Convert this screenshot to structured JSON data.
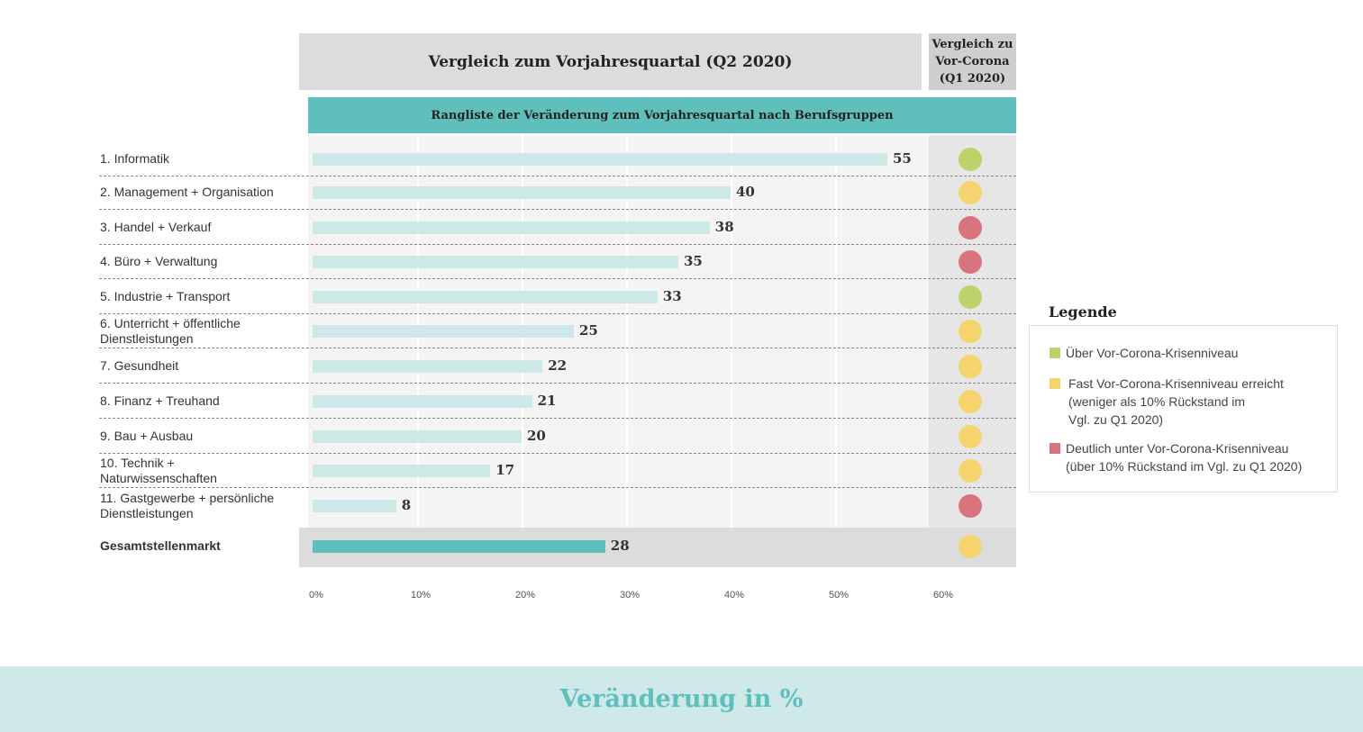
{
  "header": {
    "main": "Vergleich zum Vorjahresquartal (Q2 2020)",
    "side_lines": [
      "Vergleich zu",
      "Vor-Corona",
      "(Q1 2020)"
    ]
  },
  "band": "Rangliste der Veränderung zum Vorjahresquartal nach Berufsgruppen",
  "chart_data": {
    "type": "bar",
    "orientation": "horizontal",
    "title": "Vergleich zum Vorjahresquartal (Q2 2020)",
    "subtitle": "Rangliste der Veränderung zum Vorjahresquartal nach Berufsgruppen",
    "xlabel": "Veränderung in %",
    "xlim": [
      0,
      60
    ],
    "ticks": [
      "0%",
      "10%",
      "20%",
      "30%",
      "40%",
      "50%",
      "60%"
    ],
    "categories": [
      "1. Informatik",
      "2. Management + Organisation",
      "3. Handel + Verkauf",
      "4. Büro + Verwaltung",
      "5. Industrie + Transport",
      "6. Unterricht + öffentliche Dienstleistungen",
      "7. Gesundheit",
      "8. Finanz + Treuhand",
      "9. Bau + Ausbau",
      "10. Technik + Naturwissenschaften",
      "11. Gastgewerbe + persönliche Dienstleistungen",
      "Gesamtstellenmarkt"
    ],
    "values": [
      55,
      40,
      38,
      35,
      33,
      25,
      22,
      21,
      20,
      17,
      8,
      28
    ],
    "status": [
      "green",
      "yellow",
      "red",
      "red",
      "green",
      "yellow",
      "yellow",
      "yellow",
      "yellow",
      "yellow",
      "red",
      "yellow"
    ]
  },
  "colors": {
    "green": "#bcd26a",
    "yellow": "#f5d46e",
    "red": "#d9737d",
    "bar": "#cde9e7",
    "bar_total": "#5fbfbc"
  },
  "legend": {
    "title": "Legende",
    "items": [
      {
        "color": "green",
        "lines": [
          "Über Vor-Corona-Krisenniveau"
        ]
      },
      {
        "color": "yellow",
        "lines": [
          "Fast Vor-Corona-Krisenniveau erreicht",
          "(weniger als 10% Rückstand im",
          "Vgl. zu Q1 2020)"
        ]
      },
      {
        "color": "red",
        "lines": [
          "Deutlich unter Vor-Corona-Krisenniveau",
          "(über 10% Rückstand im Vgl. zu Q1 2020)"
        ]
      }
    ]
  },
  "footer": "Veränderung in %"
}
